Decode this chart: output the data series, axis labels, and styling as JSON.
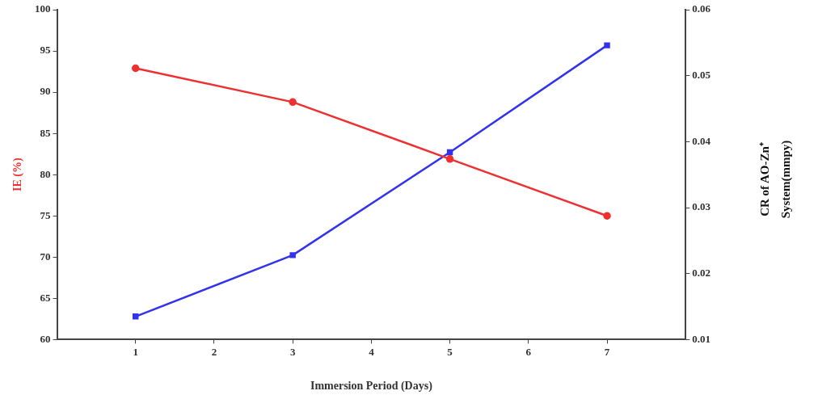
{
  "chart_data": {
    "type": "line",
    "xlabel": "Immersion Period (Days)",
    "ylabel": "IE (%)",
    "y2label": "CR of AO-Zn⁺ System(mmpy)",
    "x": [
      1,
      3,
      5,
      7
    ],
    "xlim": [
      0,
      8
    ],
    "xticks": [
      1,
      2,
      3,
      4,
      5,
      6,
      7
    ],
    "ylim": [
      60,
      100
    ],
    "yticks": [
      60,
      65,
      70,
      75,
      80,
      85,
      90,
      95,
      100
    ],
    "y2lim": [
      0.01,
      0.06
    ],
    "y2ticks": [
      0.01,
      0.02,
      0.03,
      0.04,
      0.05,
      0.06
    ],
    "grid": false,
    "legend": false,
    "line_style": "solid",
    "series": [
      {
        "color": "#ee3030",
        "values": [
          92.9,
          88.8,
          81.9,
          75
        ],
        "marker": "circle"
      },
      {
        "color": "#3333ee",
        "values": [
          0.0135,
          0.0228,
          0.0384,
          0.0546
        ],
        "axis": "y2",
        "marker": "square"
      }
    ]
  }
}
